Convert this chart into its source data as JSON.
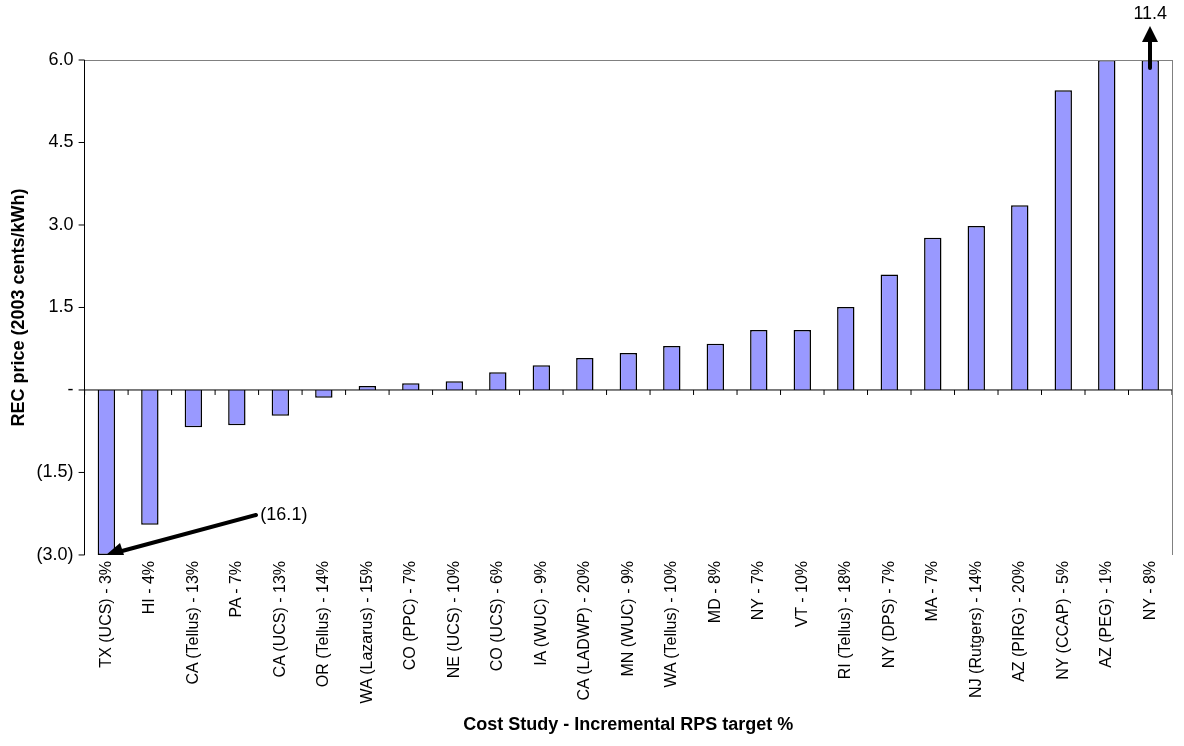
{
  "chart_data": {
    "type": "bar",
    "xlabel": "Cost Study - Incremental RPS target %",
    "ylabel": "REC price (2003 cents/kWh)",
    "categories": [
      "TX (UCS) - 3%",
      "HI - 4%",
      "CA (Tellus) - 13%",
      "PA - 7%",
      "CA (UCS) - 13%",
      "OR (Tellus) - 14%",
      "WA (Lazarus) - 15%",
      "CO (PPC) - 7%",
      "NE (UCS) - 10%",
      "CO (UCS) - 6%",
      "IA (WUC) - 9%",
      "CA (LADWP) - 20%",
      "MN (WUC) - 9%",
      "WA (Tellus) - 10%",
      "MD - 8%",
      "NY - 7%",
      "VT - 10%",
      "RI (Tellus) - 18%",
      "NY (DPS) - 7%",
      "MA - 7%",
      "NJ (Rutgers) - 14%",
      "AZ (PIRG) - 20%",
      "NY (CCAP) - 5%",
      "AZ (PEG) - 1%",
      "NY - 8%"
    ],
    "values": [
      -3.0,
      -2.45,
      -0.68,
      -0.64,
      -0.47,
      -0.14,
      0.07,
      0.12,
      0.16,
      0.32,
      0.45,
      0.58,
      0.67,
      0.8,
      0.84,
      1.09,
      1.09,
      1.51,
      2.1,
      2.77,
      2.98,
      3.36,
      5.45,
      6.0,
      6.0
    ],
    "color": "#9999ff",
    "ylim": [
      -3.0,
      6.0
    ],
    "yticks": [
      {
        "value": -3,
        "label": "(3.0)"
      },
      {
        "value": -1.5,
        "label": "(1.5)"
      },
      {
        "value": 0,
        "label": "-"
      },
      {
        "value": 1.5,
        "label": "1.5"
      },
      {
        "value": 3,
        "label": "3.0"
      },
      {
        "value": 4.5,
        "label": "4.5"
      },
      {
        "value": 6,
        "label": "6.0"
      }
    ],
    "grid": false,
    "legend": false,
    "ref_lines": [
      {
        "axis": "y",
        "value": 0,
        "color": "#000000"
      }
    ],
    "annotations": [
      "(16.1)",
      "11.4"
    ]
  }
}
